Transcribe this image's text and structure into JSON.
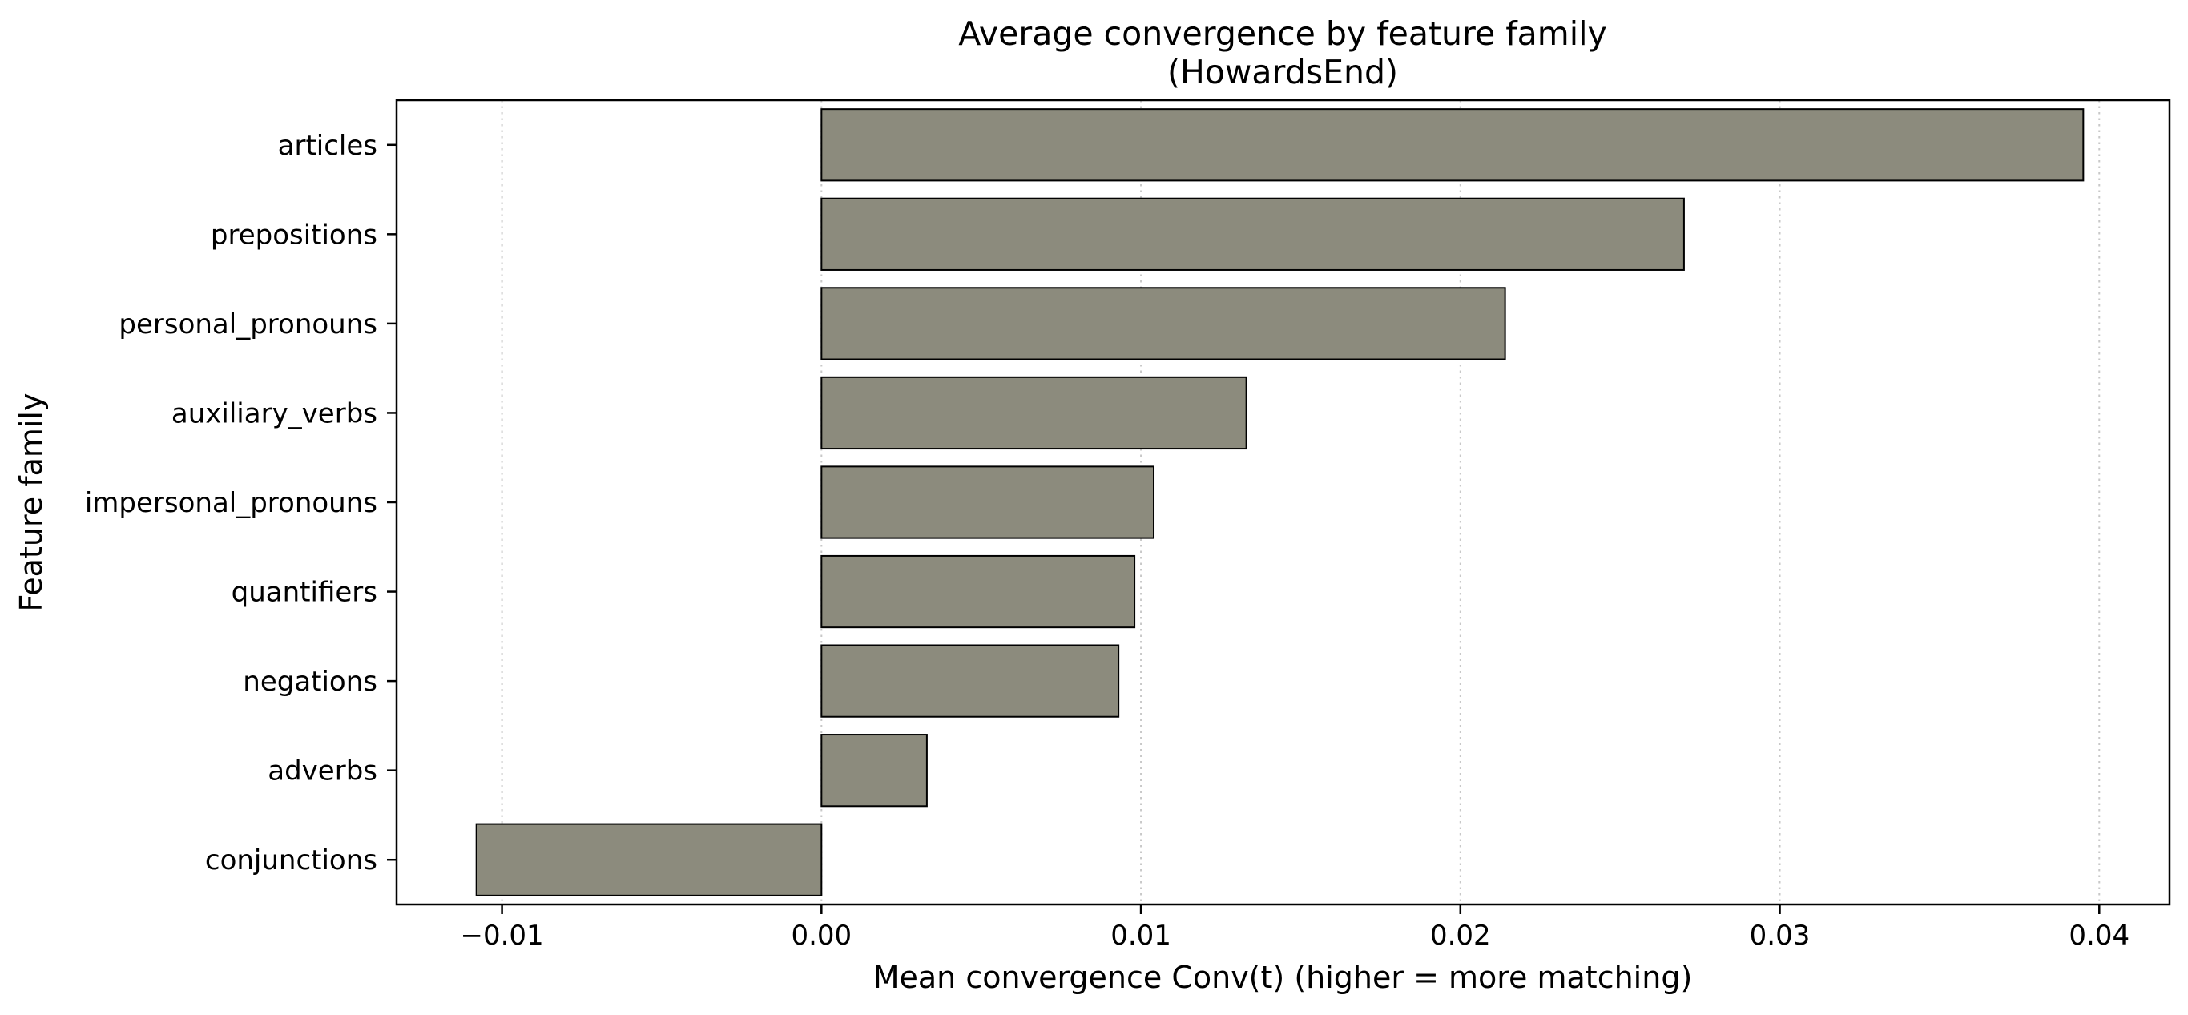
{
  "chart_data": {
    "type": "bar",
    "orientation": "horizontal",
    "title": "Average convergence by feature family",
    "subtitle": "(HowardsEnd)",
    "xlabel": "Mean convergence Conv(t) (higher = more matching)",
    "ylabel": "Feature family",
    "categories": [
      "articles",
      "prepositions",
      "personal_pronouns",
      "auxiliary_verbs",
      "impersonal_pronouns",
      "quantifiers",
      "negations",
      "adverbs",
      "conjunctions"
    ],
    "values": [
      0.0395,
      0.027,
      0.0214,
      0.0133,
      0.0104,
      0.0098,
      0.0093,
      0.0033,
      -0.0108
    ],
    "xlim": [
      -0.0133,
      0.0422
    ],
    "xticks": [
      -0.01,
      0.0,
      0.01,
      0.02,
      0.03,
      0.04
    ],
    "xtick_labels": [
      "−0.01",
      "0.00",
      "0.01",
      "0.02",
      "0.03",
      "0.04"
    ],
    "grid": "x-dotted",
    "legend": "none",
    "colors": {
      "bar_fill": "#8c8b7d",
      "bar_edge": "#000000",
      "grid": "#c8c8c8"
    }
  }
}
